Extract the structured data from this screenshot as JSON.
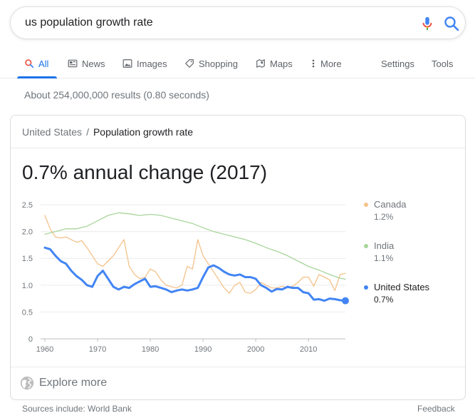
{
  "search": {
    "query": "us population growth rate"
  },
  "tabs": [
    {
      "label": "All",
      "icon": "search-icon",
      "active": true
    },
    {
      "label": "News",
      "icon": "news-icon"
    },
    {
      "label": "Images",
      "icon": "image-icon"
    },
    {
      "label": "Shopping",
      "icon": "tag-icon"
    },
    {
      "label": "Maps",
      "icon": "map-icon"
    },
    {
      "label": "More",
      "icon": "more-vert-icon"
    }
  ],
  "tools": {
    "settings": "Settings",
    "tools": "Tools"
  },
  "result_stats": "About 254,000,000 results (0.80 seconds)",
  "card": {
    "breadcrumb_parent": "United States",
    "breadcrumb_sep": "/",
    "breadcrumb_current": "Population growth rate",
    "headline": "0.7% annual change (2017)",
    "explore_more": "Explore more"
  },
  "legend": [
    {
      "name": "Canada",
      "value": "1.2%",
      "color": "#f4c28a"
    },
    {
      "name": "India",
      "value": "1.1%",
      "color": "#a8d59b"
    },
    {
      "name": "United States",
      "value": "0.7%",
      "color": "#4285f4"
    }
  ],
  "footer": {
    "sources": "Sources include: World Bank",
    "feedback": "Feedback"
  },
  "chart_data": {
    "type": "line",
    "ylim": [
      0,
      2.5
    ],
    "xlim": [
      1960,
      2017
    ],
    "yticks": [
      "2.5",
      "2.0",
      "1.5",
      "1.0",
      "0.5",
      "0"
    ],
    "xticks": [
      "1960",
      "1970",
      "1980",
      "1990",
      "2000",
      "2010"
    ],
    "series": [
      {
        "name": "Canada",
        "color": "#f4c28a",
        "points": [
          [
            1960,
            2.3
          ],
          [
            1961,
            2.05
          ],
          [
            1962,
            1.9
          ],
          [
            1963,
            1.88
          ],
          [
            1964,
            1.9
          ],
          [
            1965,
            1.85
          ],
          [
            1966,
            1.8
          ],
          [
            1967,
            1.83
          ],
          [
            1968,
            1.7
          ],
          [
            1969,
            1.55
          ],
          [
            1970,
            1.4
          ],
          [
            1971,
            1.35
          ],
          [
            1972,
            1.45
          ],
          [
            1973,
            1.55
          ],
          [
            1974,
            1.7
          ],
          [
            1975,
            1.85
          ],
          [
            1976,
            1.35
          ],
          [
            1977,
            1.2
          ],
          [
            1978,
            1.12
          ],
          [
            1979,
            1.15
          ],
          [
            1980,
            1.3
          ],
          [
            1981,
            1.25
          ],
          [
            1982,
            1.1
          ],
          [
            1983,
            1.0
          ],
          [
            1984,
            0.97
          ],
          [
            1985,
            0.95
          ],
          [
            1986,
            1.0
          ],
          [
            1987,
            1.35
          ],
          [
            1988,
            1.3
          ],
          [
            1989,
            1.85
          ],
          [
            1990,
            1.55
          ],
          [
            1991,
            1.4
          ],
          [
            1992,
            1.25
          ],
          [
            1993,
            1.1
          ],
          [
            1994,
            0.95
          ],
          [
            1995,
            0.85
          ],
          [
            1996,
            1.0
          ],
          [
            1997,
            1.05
          ],
          [
            1998,
            0.87
          ],
          [
            1999,
            0.85
          ],
          [
            2000,
            0.92
          ],
          [
            2001,
            1.05
          ],
          [
            2002,
            1.0
          ],
          [
            2003,
            0.95
          ],
          [
            2004,
            0.95
          ],
          [
            2005,
            0.98
          ],
          [
            2006,
            0.95
          ],
          [
            2007,
            0.98
          ],
          [
            2008,
            1.05
          ],
          [
            2009,
            1.15
          ],
          [
            2010,
            1.15
          ],
          [
            2011,
            0.98
          ],
          [
            2012,
            1.2
          ],
          [
            2013,
            1.15
          ],
          [
            2014,
            1.1
          ],
          [
            2015,
            0.9
          ],
          [
            2016,
            1.2
          ],
          [
            2017,
            1.22
          ]
        ]
      },
      {
        "name": "India",
        "color": "#a8d59b",
        "points": [
          [
            1960,
            1.95
          ],
          [
            1962,
            2.0
          ],
          [
            1964,
            2.05
          ],
          [
            1966,
            2.05
          ],
          [
            1968,
            2.1
          ],
          [
            1970,
            2.2
          ],
          [
            1972,
            2.3
          ],
          [
            1974,
            2.35
          ],
          [
            1976,
            2.33
          ],
          [
            1978,
            2.3
          ],
          [
            1980,
            2.32
          ],
          [
            1982,
            2.3
          ],
          [
            1984,
            2.25
          ],
          [
            1986,
            2.2
          ],
          [
            1988,
            2.15
          ],
          [
            1990,
            2.07
          ],
          [
            1992,
            2.0
          ],
          [
            1994,
            1.95
          ],
          [
            1996,
            1.9
          ],
          [
            1998,
            1.85
          ],
          [
            2000,
            1.78
          ],
          [
            2002,
            1.7
          ],
          [
            2004,
            1.63
          ],
          [
            2006,
            1.55
          ],
          [
            2008,
            1.45
          ],
          [
            2010,
            1.35
          ],
          [
            2012,
            1.28
          ],
          [
            2014,
            1.2
          ],
          [
            2016,
            1.13
          ],
          [
            2017,
            1.11
          ]
        ]
      },
      {
        "name": "United States",
        "color": "#4285f4",
        "points": [
          [
            1960,
            1.7
          ],
          [
            1961,
            1.67
          ],
          [
            1962,
            1.55
          ],
          [
            1963,
            1.45
          ],
          [
            1964,
            1.4
          ],
          [
            1965,
            1.27
          ],
          [
            1966,
            1.17
          ],
          [
            1967,
            1.1
          ],
          [
            1968,
            1.0
          ],
          [
            1969,
            0.97
          ],
          [
            1970,
            1.17
          ],
          [
            1971,
            1.27
          ],
          [
            1972,
            1.12
          ],
          [
            1973,
            0.97
          ],
          [
            1974,
            0.92
          ],
          [
            1975,
            0.97
          ],
          [
            1976,
            0.95
          ],
          [
            1977,
            1.02
          ],
          [
            1978,
            1.07
          ],
          [
            1979,
            1.12
          ],
          [
            1980,
            0.97
          ],
          [
            1981,
            0.98
          ],
          [
            1982,
            0.95
          ],
          [
            1983,
            0.92
          ],
          [
            1984,
            0.87
          ],
          [
            1985,
            0.9
          ],
          [
            1986,
            0.92
          ],
          [
            1987,
            0.9
          ],
          [
            1988,
            0.92
          ],
          [
            1989,
            0.95
          ],
          [
            1990,
            1.15
          ],
          [
            1991,
            1.33
          ],
          [
            1992,
            1.37
          ],
          [
            1993,
            1.32
          ],
          [
            1994,
            1.25
          ],
          [
            1995,
            1.2
          ],
          [
            1996,
            1.18
          ],
          [
            1997,
            1.2
          ],
          [
            1998,
            1.15
          ],
          [
            1999,
            1.15
          ],
          [
            2000,
            1.12
          ],
          [
            2001,
            1.0
          ],
          [
            2002,
            0.95
          ],
          [
            2003,
            0.88
          ],
          [
            2004,
            0.93
          ],
          [
            2005,
            0.92
          ],
          [
            2006,
            0.97
          ],
          [
            2007,
            0.95
          ],
          [
            2008,
            0.95
          ],
          [
            2009,
            0.87
          ],
          [
            2010,
            0.85
          ],
          [
            2011,
            0.73
          ],
          [
            2012,
            0.74
          ],
          [
            2013,
            0.71
          ],
          [
            2014,
            0.75
          ],
          [
            2015,
            0.74
          ],
          [
            2016,
            0.72
          ],
          [
            2017,
            0.71
          ]
        ]
      }
    ]
  }
}
